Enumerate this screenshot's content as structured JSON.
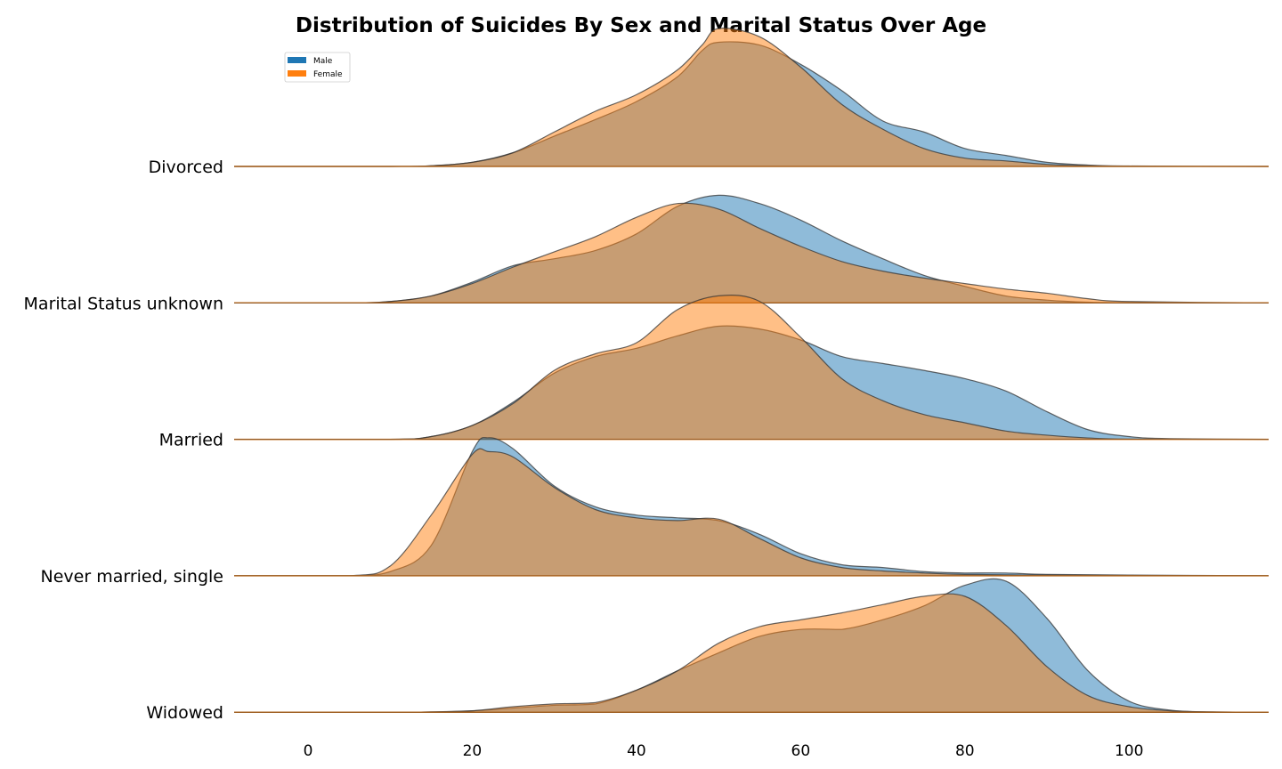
{
  "chart_data": {
    "type": "area",
    "subtype": "ridgeline",
    "title": "Distribution of Suicides By Sex and Marital Status Over Age",
    "xlabel": "",
    "ylabel": "",
    "xlim": [
      -9,
      117
    ],
    "xticks": [
      0,
      20,
      40,
      60,
      80,
      100
    ],
    "grid": false,
    "legend_position": "top-left",
    "legend": [
      {
        "name": "Male",
        "color": "#1f77b4"
      },
      {
        "name": "Female",
        "color": "#ff7f0e"
      }
    ],
    "rows": [
      {
        "label": "Divorced",
        "Male": [
          [
            -9,
            0
          ],
          [
            10,
            0
          ],
          [
            15,
            0.005
          ],
          [
            20,
            0.03
          ],
          [
            25,
            0.1
          ],
          [
            30,
            0.22
          ],
          [
            35,
            0.34
          ],
          [
            40,
            0.47
          ],
          [
            45,
            0.65
          ],
          [
            48,
            0.84
          ],
          [
            50,
            0.9
          ],
          [
            55,
            0.88
          ],
          [
            60,
            0.74
          ],
          [
            65,
            0.55
          ],
          [
            70,
            0.33
          ],
          [
            75,
            0.25
          ],
          [
            80,
            0.13
          ],
          [
            85,
            0.08
          ],
          [
            90,
            0.03
          ],
          [
            95,
            0.01
          ],
          [
            100,
            0.003
          ],
          [
            117,
            0
          ]
        ],
        "Female": [
          [
            -9,
            0
          ],
          [
            10,
            0
          ],
          [
            15,
            0.005
          ],
          [
            20,
            0.03
          ],
          [
            25,
            0.1
          ],
          [
            30,
            0.25
          ],
          [
            35,
            0.4
          ],
          [
            40,
            0.52
          ],
          [
            45,
            0.7
          ],
          [
            48,
            0.88
          ],
          [
            50,
            1.0
          ],
          [
            55,
            0.94
          ],
          [
            60,
            0.72
          ],
          [
            65,
            0.45
          ],
          [
            70,
            0.27
          ],
          [
            75,
            0.13
          ],
          [
            80,
            0.06
          ],
          [
            85,
            0.04
          ],
          [
            90,
            0.015
          ],
          [
            95,
            0.005
          ],
          [
            100,
            0.001
          ],
          [
            117,
            0
          ]
        ]
      },
      {
        "label": "Marital Status unknown",
        "Male": [
          [
            -9,
            0
          ],
          [
            5,
            0
          ],
          [
            10,
            0.01
          ],
          [
            15,
            0.05
          ],
          [
            20,
            0.15
          ],
          [
            25,
            0.27
          ],
          [
            30,
            0.32
          ],
          [
            35,
            0.38
          ],
          [
            40,
            0.5
          ],
          [
            45,
            0.7
          ],
          [
            50,
            0.78
          ],
          [
            55,
            0.72
          ],
          [
            60,
            0.6
          ],
          [
            65,
            0.45
          ],
          [
            70,
            0.32
          ],
          [
            75,
            0.2
          ],
          [
            80,
            0.12
          ],
          [
            85,
            0.05
          ],
          [
            90,
            0.02
          ],
          [
            95,
            0.005
          ],
          [
            100,
            0.001
          ],
          [
            117,
            0
          ]
        ],
        "Female": [
          [
            -9,
            0
          ],
          [
            5,
            0
          ],
          [
            10,
            0.01
          ],
          [
            15,
            0.05
          ],
          [
            20,
            0.14
          ],
          [
            25,
            0.26
          ],
          [
            30,
            0.37
          ],
          [
            35,
            0.48
          ],
          [
            40,
            0.62
          ],
          [
            45,
            0.72
          ],
          [
            50,
            0.68
          ],
          [
            55,
            0.54
          ],
          [
            60,
            0.41
          ],
          [
            65,
            0.3
          ],
          [
            70,
            0.23
          ],
          [
            75,
            0.18
          ],
          [
            80,
            0.14
          ],
          [
            85,
            0.1
          ],
          [
            90,
            0.07
          ],
          [
            95,
            0.03
          ],
          [
            100,
            0.01
          ],
          [
            117,
            0
          ]
        ]
      },
      {
        "label": "Married",
        "Male": [
          [
            -9,
            0
          ],
          [
            10,
            0
          ],
          [
            15,
            0.02
          ],
          [
            20,
            0.1
          ],
          [
            25,
            0.27
          ],
          [
            30,
            0.48
          ],
          [
            35,
            0.6
          ],
          [
            40,
            0.66
          ],
          [
            45,
            0.75
          ],
          [
            50,
            0.82
          ],
          [
            55,
            0.8
          ],
          [
            60,
            0.72
          ],
          [
            65,
            0.6
          ],
          [
            70,
            0.55
          ],
          [
            75,
            0.5
          ],
          [
            80,
            0.44
          ],
          [
            85,
            0.35
          ],
          [
            90,
            0.2
          ],
          [
            95,
            0.07
          ],
          [
            100,
            0.02
          ],
          [
            105,
            0.005
          ],
          [
            117,
            0
          ]
        ],
        "Female": [
          [
            -9,
            0
          ],
          [
            10,
            0
          ],
          [
            15,
            0.02
          ],
          [
            20,
            0.1
          ],
          [
            25,
            0.26
          ],
          [
            30,
            0.5
          ],
          [
            35,
            0.62
          ],
          [
            40,
            0.7
          ],
          [
            45,
            0.94
          ],
          [
            50,
            1.04
          ],
          [
            55,
            1.0
          ],
          [
            60,
            0.74
          ],
          [
            65,
            0.44
          ],
          [
            70,
            0.28
          ],
          [
            75,
            0.18
          ],
          [
            80,
            0.12
          ],
          [
            85,
            0.06
          ],
          [
            90,
            0.03
          ],
          [
            95,
            0.01
          ],
          [
            100,
            0.002
          ],
          [
            117,
            0
          ]
        ]
      },
      {
        "label": "Never married, single",
        "Male": [
          [
            -9,
            0
          ],
          [
            5,
            0
          ],
          [
            10,
            0.03
          ],
          [
            15,
            0.22
          ],
          [
            20,
            0.9
          ],
          [
            22,
            1.0
          ],
          [
            25,
            0.92
          ],
          [
            30,
            0.65
          ],
          [
            35,
            0.5
          ],
          [
            40,
            0.44
          ],
          [
            45,
            0.42
          ],
          [
            50,
            0.4
          ],
          [
            55,
            0.3
          ],
          [
            60,
            0.16
          ],
          [
            65,
            0.08
          ],
          [
            70,
            0.06
          ],
          [
            75,
            0.03
          ],
          [
            80,
            0.02
          ],
          [
            85,
            0.02
          ],
          [
            90,
            0.01
          ],
          [
            100,
            0.005
          ],
          [
            117,
            0
          ]
        ],
        "Female": [
          [
            -9,
            0
          ],
          [
            5,
            0
          ],
          [
            10,
            0.07
          ],
          [
            15,
            0.44
          ],
          [
            20,
            0.88
          ],
          [
            22,
            0.9
          ],
          [
            25,
            0.86
          ],
          [
            30,
            0.64
          ],
          [
            35,
            0.48
          ],
          [
            40,
            0.42
          ],
          [
            45,
            0.4
          ],
          [
            50,
            0.41
          ],
          [
            55,
            0.27
          ],
          [
            60,
            0.13
          ],
          [
            65,
            0.06
          ],
          [
            70,
            0.035
          ],
          [
            75,
            0.02
          ],
          [
            80,
            0.01
          ],
          [
            90,
            0.005
          ],
          [
            100,
            0.002
          ],
          [
            117,
            0
          ]
        ]
      },
      {
        "label": "Widowed",
        "Male": [
          [
            -9,
            0
          ],
          [
            10,
            0
          ],
          [
            15,
            0.002
          ],
          [
            20,
            0.01
          ],
          [
            25,
            0.03
          ],
          [
            30,
            0.05
          ],
          [
            35,
            0.06
          ],
          [
            40,
            0.16
          ],
          [
            45,
            0.3
          ],
          [
            50,
            0.43
          ],
          [
            55,
            0.55
          ],
          [
            60,
            0.6
          ],
          [
            65,
            0.6
          ],
          [
            70,
            0.67
          ],
          [
            75,
            0.77
          ],
          [
            80,
            0.92
          ],
          [
            85,
            0.95
          ],
          [
            90,
            0.68
          ],
          [
            95,
            0.3
          ],
          [
            100,
            0.08
          ],
          [
            105,
            0.015
          ],
          [
            110,
            0.002
          ],
          [
            117,
            0
          ]
        ],
        "Female": [
          [
            -9,
            0
          ],
          [
            10,
            0
          ],
          [
            15,
            0.002
          ],
          [
            20,
            0.01
          ],
          [
            25,
            0.04
          ],
          [
            30,
            0.06
          ],
          [
            35,
            0.07
          ],
          [
            40,
            0.16
          ],
          [
            45,
            0.3
          ],
          [
            50,
            0.5
          ],
          [
            55,
            0.62
          ],
          [
            60,
            0.67
          ],
          [
            65,
            0.72
          ],
          [
            70,
            0.78
          ],
          [
            75,
            0.84
          ],
          [
            80,
            0.84
          ],
          [
            85,
            0.63
          ],
          [
            90,
            0.33
          ],
          [
            95,
            0.12
          ],
          [
            100,
            0.04
          ],
          [
            105,
            0.01
          ],
          [
            110,
            0.002
          ],
          [
            117,
            0
          ]
        ]
      }
    ]
  }
}
